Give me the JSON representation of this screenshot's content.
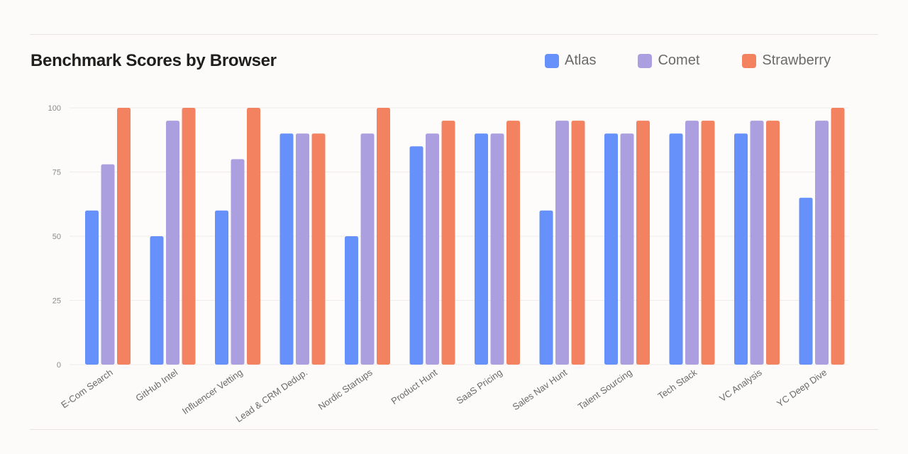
{
  "chart_data": {
    "type": "bar",
    "title": "Benchmark Scores by Browser",
    "xlabel": "",
    "ylabel": "",
    "ylim": [
      0,
      100
    ],
    "yticks": [
      0,
      25,
      50,
      75,
      100
    ],
    "grid": true,
    "legend_position": "top-right",
    "categories": [
      "E-Com Search",
      "GitHub Intel",
      "Influencer Vetting",
      "Lead & CRM Dedup.",
      "Nordic Startups",
      "Product Hunt",
      "SaaS Pricing",
      "Sales Nav Hunt",
      "Talent Sourcing",
      "Tech Stack",
      "VC Analysis",
      "YC Deep Dive"
    ],
    "series": [
      {
        "name": "Atlas",
        "color": "#6690fa",
        "values": [
          60,
          50,
          60,
          90,
          50,
          85,
          90,
          60,
          90,
          90,
          90,
          65
        ]
      },
      {
        "name": "Comet",
        "color": "#ab9fe0",
        "values": [
          78,
          95,
          80,
          90,
          90,
          90,
          90,
          95,
          90,
          95,
          95,
          95
        ]
      },
      {
        "name": "Strawberry",
        "color": "#f38360",
        "values": [
          100,
          100,
          100,
          90,
          100,
          95,
          95,
          95,
          95,
          95,
          95,
          100
        ]
      }
    ]
  }
}
